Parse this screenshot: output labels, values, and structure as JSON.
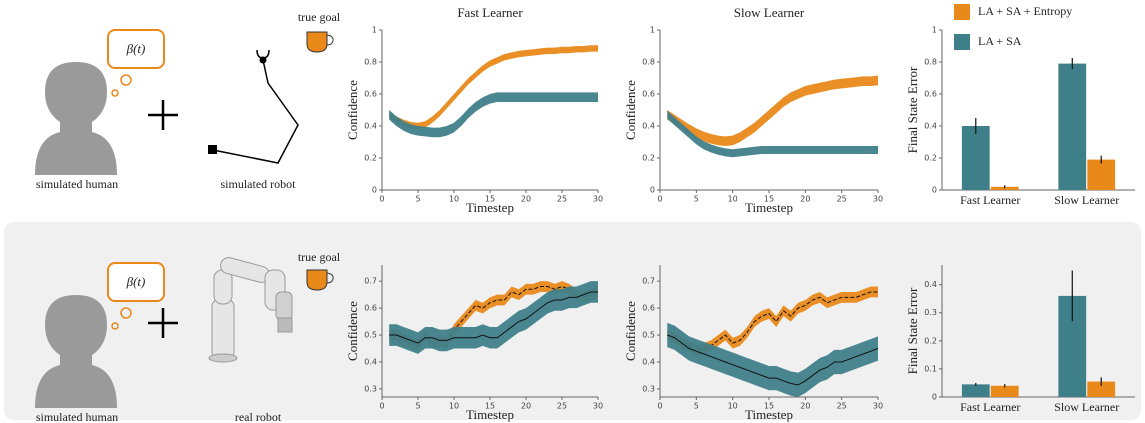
{
  "rows": [
    {
      "bubble": "β(t)",
      "human": "simulated human",
      "robot": "simulated robot",
      "goal": "true goal"
    },
    {
      "bubble": "β(t)",
      "human": "simulated human",
      "robot": "real robot",
      "goal": "true goal"
    }
  ],
  "chart_data": [
    {
      "type": "line",
      "title": "Fast Learner",
      "xlabel": "Timestep",
      "ylabel": "Confidence",
      "xlim": [
        0,
        30
      ],
      "xticks": [
        0,
        5,
        10,
        15,
        20,
        25,
        30
      ],
      "ylim": [
        0,
        1
      ],
      "yticks": [
        0,
        0.2,
        0.4,
        0.6,
        0.8,
        1
      ],
      "mean_line": false,
      "x": [
        1,
        2,
        3,
        4,
        5,
        6,
        7,
        8,
        9,
        10,
        11,
        12,
        13,
        14,
        15,
        16,
        17,
        18,
        19,
        20,
        21,
        22,
        23,
        24,
        25,
        26,
        27,
        28,
        29,
        30
      ],
      "series": [
        {
          "color": "#e8891a",
          "band": 0.02,
          "values": [
            0.47,
            0.44,
            0.42,
            0.405,
            0.4,
            0.41,
            0.44,
            0.48,
            0.53,
            0.58,
            0.63,
            0.68,
            0.72,
            0.76,
            0.79,
            0.81,
            0.83,
            0.84,
            0.85,
            0.855,
            0.86,
            0.865,
            0.87,
            0.87,
            0.875,
            0.875,
            0.88,
            0.88,
            0.885,
            0.885
          ]
        },
        {
          "color": "#3f7f8a",
          "band": 0.03,
          "values": [
            0.47,
            0.43,
            0.4,
            0.38,
            0.37,
            0.365,
            0.36,
            0.36,
            0.37,
            0.39,
            0.43,
            0.48,
            0.52,
            0.55,
            0.57,
            0.58,
            0.58,
            0.58,
            0.58,
            0.58,
            0.58,
            0.58,
            0.58,
            0.58,
            0.58,
            0.58,
            0.58,
            0.58,
            0.58,
            0.58
          ]
        }
      ]
    },
    {
      "type": "line",
      "title": "Slow Learner",
      "xlabel": "Timestep",
      "ylabel": "Confidence",
      "xlim": [
        0,
        30
      ],
      "xticks": [
        0,
        5,
        10,
        15,
        20,
        25,
        30
      ],
      "ylim": [
        0,
        1
      ],
      "yticks": [
        0,
        0.2,
        0.4,
        0.6,
        0.8,
        1
      ],
      "mean_line": false,
      "x": [
        1,
        2,
        3,
        4,
        5,
        6,
        7,
        8,
        9,
        10,
        11,
        12,
        13,
        14,
        15,
        16,
        17,
        18,
        19,
        20,
        21,
        22,
        23,
        24,
        25,
        26,
        27,
        28,
        29,
        30
      ],
      "series": [
        {
          "color": "#e8891a",
          "band": 0.03,
          "values": [
            0.47,
            0.44,
            0.41,
            0.38,
            0.355,
            0.335,
            0.32,
            0.31,
            0.305,
            0.31,
            0.33,
            0.36,
            0.39,
            0.43,
            0.47,
            0.51,
            0.55,
            0.58,
            0.6,
            0.62,
            0.63,
            0.64,
            0.65,
            0.66,
            0.665,
            0.67,
            0.675,
            0.68,
            0.68,
            0.685
          ]
        },
        {
          "color": "#3f7f8a",
          "band": 0.025,
          "values": [
            0.47,
            0.43,
            0.39,
            0.35,
            0.31,
            0.28,
            0.26,
            0.245,
            0.235,
            0.23,
            0.235,
            0.24,
            0.245,
            0.25,
            0.25,
            0.25,
            0.25,
            0.25,
            0.25,
            0.25,
            0.25,
            0.25,
            0.25,
            0.25,
            0.25,
            0.25,
            0.25,
            0.25,
            0.25,
            0.25
          ]
        }
      ]
    },
    {
      "type": "bar",
      "ylabel": "Final State Error",
      "legend": "top-left",
      "categories": [
        "Fast Learner",
        "Slow Learner"
      ],
      "ylim": [
        0,
        1
      ],
      "yticks": [
        0,
        0.2,
        0.4,
        0.6,
        0.8,
        1
      ],
      "series": [
        {
          "name": "LA + SA + Entropy",
          "color": "#e8891a",
          "values": [
            0.02,
            0.19
          ],
          "errors": [
            0.01,
            0.025
          ]
        },
        {
          "name": "LA + SA",
          "color": "#3f7f8a",
          "values": [
            0.4,
            0.79
          ],
          "errors": [
            0.05,
            0.035
          ]
        }
      ]
    },
    {
      "type": "line",
      "xlabel": "Timestep",
      "ylabel": "Confidence",
      "xlim": [
        0,
        30
      ],
      "xticks": [
        0,
        5,
        10,
        15,
        20,
        25,
        30
      ],
      "ylim": [
        0.27,
        0.76
      ],
      "yticks": [
        0.3,
        0.4,
        0.5,
        0.6,
        0.7
      ],
      "mean_line": true,
      "x": [
        1,
        2,
        3,
        4,
        5,
        6,
        7,
        8,
        9,
        10,
        11,
        12,
        13,
        14,
        15,
        16,
        17,
        18,
        19,
        20,
        21,
        22,
        23,
        24,
        25,
        26,
        27,
        28,
        29,
        30
      ],
      "series": [
        {
          "color": "#e8891a",
          "band": 0.02,
          "dash": true,
          "values": [
            0.5,
            0.5,
            0.48,
            0.47,
            0.46,
            0.5,
            0.47,
            0.48,
            0.47,
            0.52,
            0.55,
            0.58,
            0.61,
            0.6,
            0.62,
            0.63,
            0.63,
            0.66,
            0.65,
            0.67,
            0.67,
            0.68,
            0.68,
            0.67,
            0.68,
            0.67,
            0.65,
            0.64,
            0.65,
            0.66
          ]
        },
        {
          "color": "#3f7f8a",
          "band": 0.04,
          "dash": false,
          "values": [
            0.5,
            0.5,
            0.49,
            0.48,
            0.47,
            0.49,
            0.49,
            0.48,
            0.48,
            0.49,
            0.49,
            0.49,
            0.49,
            0.5,
            0.49,
            0.49,
            0.51,
            0.53,
            0.55,
            0.56,
            0.58,
            0.6,
            0.62,
            0.63,
            0.63,
            0.64,
            0.64,
            0.65,
            0.66,
            0.66
          ]
        }
      ]
    },
    {
      "type": "line",
      "xlabel": "Timestep",
      "ylabel": "Confidence",
      "xlim": [
        0,
        30
      ],
      "xticks": [
        0,
        5,
        10,
        15,
        20,
        25,
        30
      ],
      "ylim": [
        0.27,
        0.76
      ],
      "yticks": [
        0.3,
        0.4,
        0.5,
        0.6,
        0.7
      ],
      "mean_line": true,
      "x": [
        1,
        2,
        3,
        4,
        5,
        6,
        7,
        8,
        9,
        10,
        11,
        12,
        13,
        14,
        15,
        16,
        17,
        18,
        19,
        20,
        21,
        22,
        23,
        24,
        25,
        26,
        27,
        28,
        29,
        30
      ],
      "series": [
        {
          "color": "#e8891a",
          "band": 0.02,
          "dash": true,
          "values": [
            0.5,
            0.49,
            0.47,
            0.46,
            0.44,
            0.45,
            0.46,
            0.48,
            0.5,
            0.47,
            0.48,
            0.51,
            0.55,
            0.57,
            0.58,
            0.55,
            0.59,
            0.57,
            0.6,
            0.61,
            0.63,
            0.64,
            0.62,
            0.63,
            0.64,
            0.64,
            0.64,
            0.65,
            0.66,
            0.66
          ]
        },
        {
          "color": "#3f7f8a",
          "band": 0.045,
          "dash": false,
          "values": [
            0.5,
            0.49,
            0.47,
            0.45,
            0.44,
            0.43,
            0.42,
            0.41,
            0.4,
            0.39,
            0.38,
            0.37,
            0.36,
            0.35,
            0.34,
            0.34,
            0.33,
            0.32,
            0.315,
            0.33,
            0.35,
            0.37,
            0.38,
            0.4,
            0.4,
            0.41,
            0.42,
            0.43,
            0.44,
            0.45
          ]
        }
      ]
    },
    {
      "type": "bar",
      "ylabel": "Final State Error",
      "categories": [
        "Fast Learner",
        "Slow Learner"
      ],
      "ylim": [
        0,
        0.47
      ],
      "yticks": [
        0,
        0.1,
        0.2,
        0.3,
        0.4
      ],
      "series": [
        {
          "color": "#e8891a",
          "values": [
            0.04,
            0.055
          ],
          "errors": [
            0.006,
            0.015
          ]
        },
        {
          "color": "#3f7f8a",
          "values": [
            0.045,
            0.36
          ],
          "errors": [
            0.005,
            0.09
          ]
        }
      ]
    }
  ]
}
